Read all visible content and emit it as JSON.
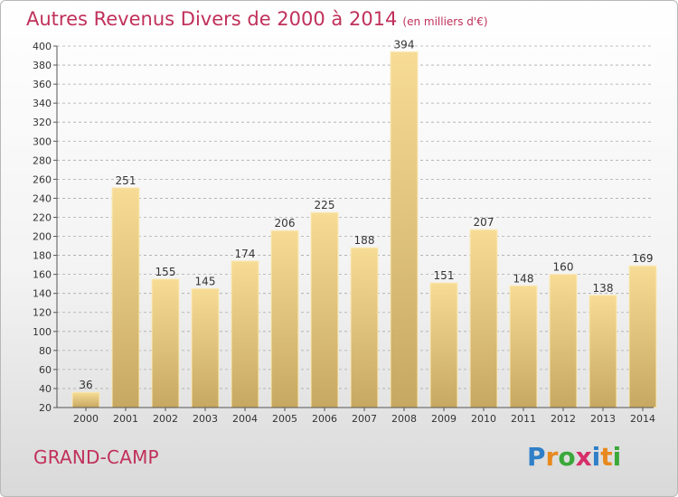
{
  "header": {
    "title": "Autres Revenus Divers de 2000 à 2014",
    "unit": "(en milliers d'€)"
  },
  "footer": {
    "city": "GRAND-CAMP",
    "logo": {
      "letters": [
        "P",
        "r",
        "o",
        "x",
        "i",
        "t",
        "i"
      ],
      "colors": [
        "#2f7fc8",
        "#e8891e",
        "#3aa83a",
        "#d62f6a",
        "#2f7fc8",
        "#e8891e",
        "#3aa83a"
      ]
    }
  },
  "colors": {
    "title": "#c0305a",
    "bar_light": "#f7dc96",
    "bar_dark": "#c7a862",
    "grid": "#aaaaaa"
  },
  "chart_data": {
    "type": "bar",
    "title": "Autres Revenus Divers de 2000 à 2014",
    "xlabel": "",
    "ylabel": "",
    "categories": [
      "2000",
      "2001",
      "2002",
      "2003",
      "2004",
      "2005",
      "2006",
      "2007",
      "2008",
      "2009",
      "2010",
      "2011",
      "2012",
      "2013",
      "2014"
    ],
    "values": [
      36,
      251,
      155,
      145,
      174,
      206,
      225,
      188,
      394,
      151,
      207,
      148,
      160,
      138,
      169
    ],
    "ylim": [
      20,
      400
    ],
    "yticks": [
      20,
      40,
      60,
      80,
      100,
      120,
      140,
      160,
      180,
      200,
      220,
      240,
      260,
      280,
      300,
      320,
      340,
      360,
      380,
      400
    ],
    "grid": "horizontal-dashed",
    "legend": "none",
    "data_labels": true
  }
}
